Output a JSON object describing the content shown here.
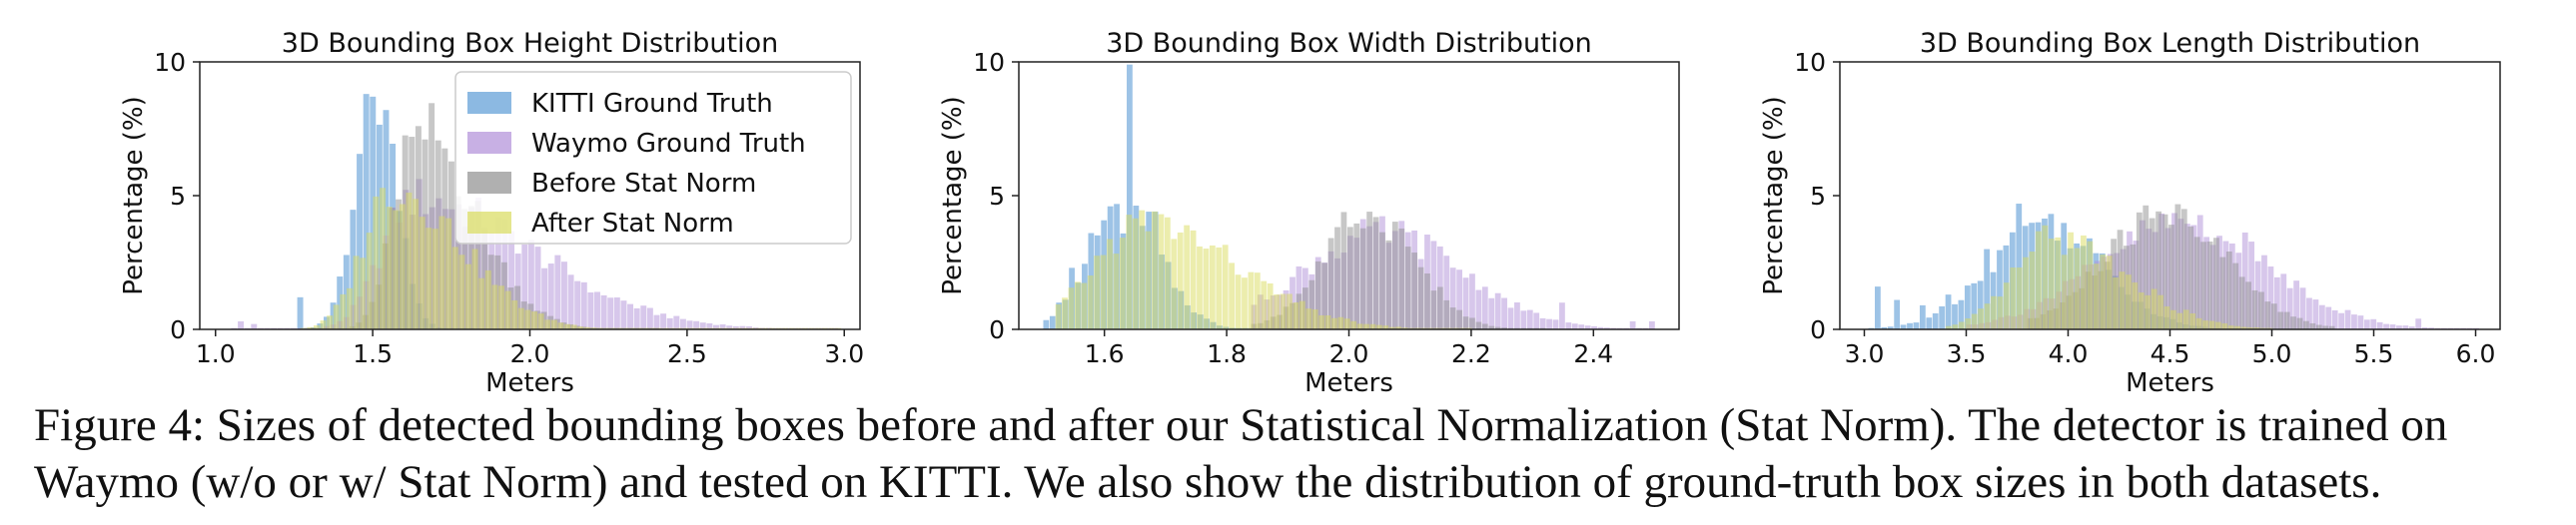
{
  "figure": {
    "caption_label": "Figure 4:",
    "caption_text": "Sizes of detected bounding boxes before and after our Statistical Normalization (Stat Norm). The detector is trained on Waymo (w/o or w/ Stat Norm) and tested on KITTI. We also show the distribution of ground-truth box sizes in both datasets."
  },
  "colors": {
    "kitti": "#5b9bd5",
    "waymo": "#b08fd8",
    "before": "#8f8f8f",
    "after": "#d9db5c"
  },
  "chart_data": [
    {
      "type": "bar",
      "title": "3D Bounding Box Height Distribution",
      "xlabel": "Meters",
      "ylabel": "Percentage (%)",
      "xlim": [
        0.95,
        3.05
      ],
      "ylim": [
        0,
        10
      ],
      "xticks": [
        1.0,
        1.5,
        2.0,
        2.5,
        3.0
      ],
      "xtick_labels": [
        "1.0",
        "1.5",
        "2.0",
        "2.5",
        "3.0"
      ],
      "yticks": [
        0,
        5,
        10
      ],
      "ytick_labels": [
        "0",
        "5",
        "10"
      ],
      "legend_position": "top-right",
      "legend": [
        "KITTI Ground Truth",
        "Waymo Ground Truth",
        "Before Stat Norm",
        "After Stat Norm"
      ],
      "bin_width": 0.021,
      "series": [
        {
          "key": "kitti",
          "name": "KITTI Ground Truth",
          "profile": "gauss",
          "params": {
            "mu": 1.5,
            "sigma": 0.065,
            "peak": 8.8,
            "range": [
              1.26,
              1.82
            ]
          },
          "spikes": [
            [
              1.27,
              1.2
            ],
            [
              1.48,
              8.8
            ],
            [
              1.5,
              8.7
            ],
            [
              1.53,
              8.2
            ]
          ]
        },
        {
          "key": "waymo",
          "name": "Waymo Ground Truth",
          "profile": "skew",
          "params": {
            "mu": 1.62,
            "sigma_left": 0.1,
            "sigma_right": 0.38,
            "peak": 4.9,
            "range": [
              1.05,
              2.98
            ]
          },
          "spikes": [
            [
              1.08,
              0.3
            ],
            [
              1.12,
              0.2
            ],
            [
              2.2,
              1.4
            ],
            [
              2.45,
              0.5
            ]
          ]
        },
        {
          "key": "before",
          "name": "Before Stat Norm",
          "profile": "skew",
          "params": {
            "mu": 1.63,
            "sigma_left": 0.07,
            "sigma_right": 0.18,
            "peak": 7.6,
            "range": [
              1.3,
              2.4
            ]
          },
          "spikes": [
            [
              1.63,
              7.6
            ],
            [
              1.61,
              7.2
            ],
            [
              1.66,
              7.1
            ]
          ]
        },
        {
          "key": "after",
          "name": "After Stat Norm",
          "profile": "skew",
          "params": {
            "mu": 1.55,
            "sigma_left": 0.09,
            "sigma_right": 0.22,
            "peak": 5.3,
            "range": [
              1.27,
              2.98
            ]
          },
          "spikes": []
        }
      ]
    },
    {
      "type": "bar",
      "title": "3D Bounding Box Width Distribution",
      "xlabel": "Meters",
      "ylabel": "Percentage (%)",
      "xlim": [
        1.46,
        2.54
      ],
      "ylim": [
        0,
        10
      ],
      "xticks": [
        1.6,
        1.8,
        2.0,
        2.2,
        2.4
      ],
      "xtick_labels": [
        "1.6",
        "1.8",
        "2.0",
        "2.2",
        "2.4"
      ],
      "yticks": [
        0,
        5,
        10
      ],
      "ytick_labels": [
        "0",
        "5",
        "10"
      ],
      "legend": [],
      "bin_width": 0.0105,
      "series": [
        {
          "key": "kitti",
          "name": "KITTI Ground Truth",
          "profile": "gauss",
          "params": {
            "mu": 1.63,
            "sigma": 0.06,
            "peak": 4.2,
            "range": [
              1.5,
              1.9
            ]
          },
          "spikes": [
            [
              1.52,
              1.0
            ],
            [
              1.54,
              2.3
            ],
            [
              1.575,
              3.6
            ],
            [
              1.6,
              4.6
            ],
            [
              1.64,
              9.9
            ],
            [
              1.665,
              4.4
            ],
            [
              1.68,
              4.4
            ]
          ]
        },
        {
          "key": "waymo",
          "name": "Waymo Ground Truth",
          "profile": "gauss",
          "params": {
            "mu": 2.05,
            "sigma": 0.13,
            "peak": 3.6,
            "range": [
              1.84,
              2.5
            ]
          },
          "spikes": [
            [
              2.34,
              1.0
            ],
            [
              2.46,
              0.3
            ],
            [
              2.49,
              0.3
            ]
          ]
        },
        {
          "key": "before",
          "name": "Before Stat Norm",
          "profile": "gauss",
          "params": {
            "mu": 2.03,
            "sigma": 0.075,
            "peak": 4.4,
            "range": [
              1.84,
              2.32
            ]
          },
          "spikes": [
            [
              2.03,
              4.4
            ],
            [
              2.04,
              4.2
            ]
          ]
        },
        {
          "key": "after",
          "name": "After Stat Norm",
          "profile": "skew",
          "params": {
            "mu": 1.66,
            "sigma_left": 0.08,
            "sigma_right": 0.15,
            "peak": 4.0,
            "range": [
              1.52,
              2.2
            ]
          },
          "spikes": []
        }
      ]
    },
    {
      "type": "bar",
      "title": "3D Bounding Box Length Distribution",
      "xlabel": "Meters",
      "ylabel": "Percentage (%)",
      "xlim": [
        2.88,
        6.12
      ],
      "ylim": [
        0,
        10
      ],
      "xticks": [
        3.0,
        3.5,
        4.0,
        4.5,
        5.0,
        5.5,
        6.0
      ],
      "xtick_labels": [
        "3.0",
        "3.5",
        "4.0",
        "4.5",
        "5.0",
        "5.5",
        "6.0"
      ],
      "yticks": [
        0,
        5,
        10
      ],
      "ytick_labels": [
        "0",
        "5",
        "10"
      ],
      "legend": [],
      "bin_width": 0.0315,
      "series": [
        {
          "key": "kitti",
          "name": "KITTI Ground Truth",
          "profile": "gauss",
          "params": {
            "mu": 3.88,
            "sigma": 0.28,
            "peak": 4.0,
            "range": [
              3.02,
              4.75
            ]
          },
          "spikes": [
            [
              3.05,
              1.6
            ],
            [
              3.15,
              1.1
            ],
            [
              3.28,
              0.9
            ],
            [
              3.4,
              1.3
            ],
            [
              3.6,
              3.0
            ],
            [
              3.75,
              4.7
            ]
          ]
        },
        {
          "key": "waymo",
          "name": "Waymo Ground Truth",
          "profile": "gauss",
          "params": {
            "mu": 4.55,
            "sigma": 0.42,
            "peak": 4.0,
            "range": [
              3.5,
              6.0
            ]
          },
          "spikes": [
            [
              4.72,
              3.5
            ],
            [
              5.72,
              0.4
            ]
          ]
        },
        {
          "key": "before",
          "name": "Before Stat Norm",
          "profile": "gauss",
          "params": {
            "mu": 4.47,
            "sigma": 0.3,
            "peak": 4.3,
            "range": [
              3.8,
              5.3
            ]
          },
          "spikes": [
            [
              4.47,
              4.3
            ],
            [
              4.55,
              4.5
            ]
          ]
        },
        {
          "key": "after",
          "name": "After Stat Norm",
          "profile": "skew",
          "params": {
            "mu": 3.92,
            "sigma_left": 0.2,
            "sigma_right": 0.35,
            "peak": 3.4,
            "range": [
              3.4,
              5.0
            ]
          },
          "spikes": []
        }
      ]
    }
  ]
}
